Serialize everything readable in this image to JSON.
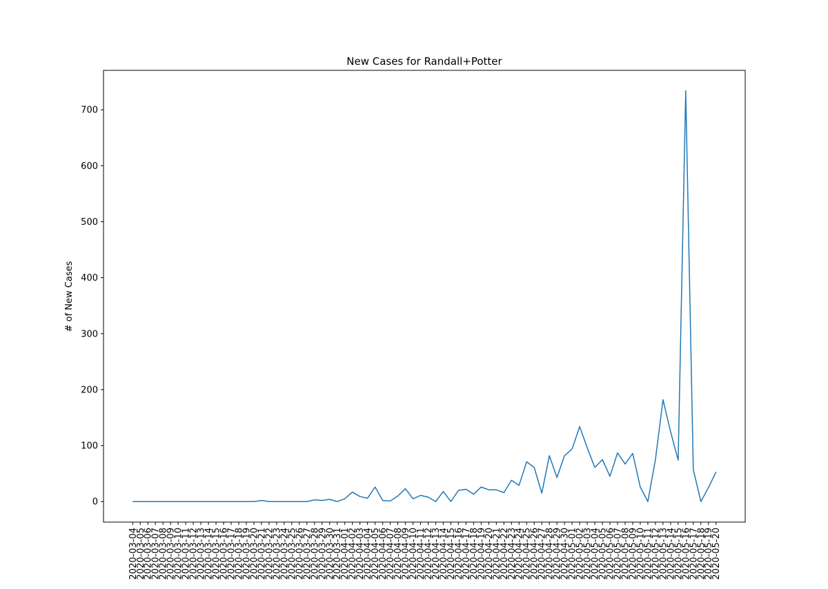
{
  "chart_data": {
    "type": "line",
    "title": "New Cases for Randall+Potter",
    "y_label": "# of New Cases",
    "categories": [
      "2020-03-04",
      "2020-03-05",
      "2020-03-06",
      "2020-03-07",
      "2020-03-08",
      "2020-03-09",
      "2020-03-10",
      "2020-03-11",
      "2020-03-12",
      "2020-03-13",
      "2020-03-14",
      "2020-03-15",
      "2020-03-16",
      "2020-03-17",
      "2020-03-18",
      "2020-03-19",
      "2020-03-20",
      "2020-03-21",
      "2020-03-22",
      "2020-03-23",
      "2020-03-24",
      "2020-03-25",
      "2020-03-26",
      "2020-03-27",
      "2020-03-28",
      "2020-03-29",
      "2020-03-30",
      "2020-03-31",
      "2020-04-01",
      "2020-04-02",
      "2020-04-03",
      "2020-04-04",
      "2020-04-05",
      "2020-04-06",
      "2020-04-07",
      "2020-04-08",
      "2020-04-09",
      "2020-04-10",
      "2020-04-11",
      "2020-04-12",
      "2020-04-13",
      "2020-04-14",
      "2020-04-15",
      "2020-04-16",
      "2020-04-17",
      "2020-04-18",
      "2020-04-19",
      "2020-04-20",
      "2020-04-21",
      "2020-04-22",
      "2020-04-23",
      "2020-04-24",
      "2020-04-25",
      "2020-04-26",
      "2020-04-27",
      "2020-04-28",
      "2020-04-29",
      "2020-04-30",
      "2020-05-01",
      "2020-05-02",
      "2020-05-03",
      "2020-05-04",
      "2020-05-05",
      "2020-05-06",
      "2020-05-07",
      "2020-05-08",
      "2020-05-09",
      "2020-05-10",
      "2020-05-11",
      "2020-05-12",
      "2020-05-13",
      "2020-05-14",
      "2020-05-15",
      "2020-05-16",
      "2020-05-17",
      "2020-05-18",
      "2020-05-19",
      "2020-05-20"
    ],
    "values": [
      0,
      0,
      0,
      0,
      0,
      0,
      0,
      0,
      0,
      0,
      0,
      0,
      0,
      0,
      0,
      0,
      0,
      2,
      0,
      0,
      0,
      0,
      0,
      0,
      3,
      2,
      4,
      0,
      5,
      17,
      9,
      6,
      26,
      2,
      1,
      10,
      23,
      5,
      11,
      8,
      0,
      18,
      0,
      20,
      22,
      13,
      26,
      21,
      21,
      16,
      38,
      29,
      71,
      61,
      15,
      82,
      43,
      82,
      94,
      134,
      96,
      61,
      75,
      45,
      87,
      67,
      86,
      26,
      0,
      75,
      182,
      125,
      74,
      734,
      57,
      0,
      25,
      53
    ],
    "color": "#1f77b4",
    "ylim": [
      -36.7,
      770.5
    ],
    "yticks": [
      0,
      100,
      200,
      300,
      400,
      500,
      600,
      700
    ]
  }
}
